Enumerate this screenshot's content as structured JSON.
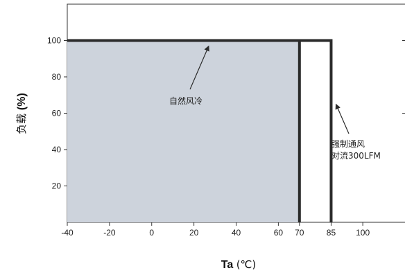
{
  "chart_data": {
    "type": "area",
    "xlim": [
      -40,
      120
    ],
    "ylim": [
      0,
      120
    ],
    "x_ticks": [
      -40,
      -20,
      0,
      20,
      40,
      60,
      70,
      85,
      100
    ],
    "y_ticks": [
      20,
      40,
      60,
      80,
      100
    ],
    "xlabel": {
      "main": "Ta",
      "unit": "(℃)"
    },
    "ylabel": {
      "main": "负载",
      "unit": "(%)"
    },
    "grid": false,
    "series": [
      {
        "name": "自然风冷",
        "x": [
          -40,
          70,
          70
        ],
        "y": [
          100,
          100,
          0
        ],
        "fill": "#cdd3dc"
      },
      {
        "name": "强制通风 对流300LFM",
        "x": [
          -40,
          85,
          85
        ],
        "y": [
          100,
          100,
          0
        ]
      }
    ],
    "annotations": [
      {
        "text": "自然风冷",
        "target_x": 27,
        "target_y": 100
      },
      {
        "lines": [
          "强制通风",
          "对流300LFM"
        ],
        "target_x": 86,
        "target_y": 68
      }
    ],
    "colors": {
      "line": "#2b2b2b",
      "fill": "#cdd3dc",
      "axis": "#333333"
    }
  }
}
